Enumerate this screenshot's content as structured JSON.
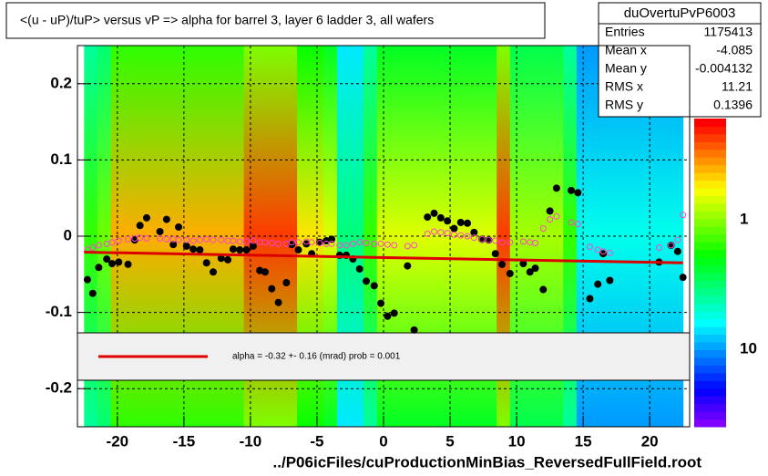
{
  "chart_data": {
    "type": "profile2d",
    "title": "<(u - uP)/tuP>  versus   vP => alpha for barrel 3, layer 6 ladder 3, all wafers",
    "x_label": "../P06icFiles/cuProductionMinBias_ReversedFullField.root",
    "xlim": [
      -23,
      23
    ],
    "ylim": [
      -0.25,
      0.25
    ],
    "xticks": [
      -20,
      -15,
      -10,
      -5,
      0,
      5,
      10,
      15,
      20
    ],
    "yticks": [
      -0.2,
      -0.1,
      0,
      0.1,
      0.2
    ],
    "grid": true,
    "stats": {
      "name": "duOvertuPvP6003",
      "rows": [
        [
          "Entries",
          "1175413"
        ],
        [
          "Mean x",
          "-4.085"
        ],
        [
          "Mean y",
          "-0.004132"
        ],
        [
          "RMS x",
          "11.21"
        ],
        [
          "RMS y",
          "0.1396"
        ]
      ]
    },
    "colorbar_labels": [
      "1",
      "10"
    ],
    "heatmap": {
      "bins": [
        -22.5,
        -21.5,
        -20.5,
        -19.5,
        -18.5,
        -17.5,
        -16.5,
        -15.5,
        -14.5,
        -13.5,
        -12.5,
        -11.5,
        -10.5,
        -9.5,
        -8.5,
        -7.5,
        -6.5,
        -5.5,
        -4.5,
        -3.5,
        -2.5,
        -1.5,
        -0.5,
        0.5,
        1.5,
        2.5,
        3.5,
        4.5,
        5.5,
        6.5,
        7.5,
        8.5,
        9.5,
        10.5,
        11.5,
        12.5,
        13.5,
        14.5,
        15.5,
        16.5,
        17.5,
        18.5,
        19.5,
        20.5,
        21.5,
        22.5
      ],
      "levels": [
        0.6,
        0.65,
        0.85,
        0.85,
        0.85,
        0.85,
        0.85,
        0.85,
        0.85,
        0.85,
        0.85,
        0.85,
        0.95,
        0.95,
        0.95,
        0.95,
        0.8,
        0.8,
        0.75,
        0.45,
        0.45,
        0.6,
        0.75,
        0.75,
        0.75,
        0.75,
        0.75,
        0.75,
        0.75,
        0.75,
        0.75,
        0.95,
        0.7,
        0.7,
        0.7,
        0.7,
        0.6,
        0.35,
        0.35,
        0.35,
        0.35,
        0.35,
        0.35,
        0.35,
        0.35
      ]
    },
    "x": [
      -22.25,
      -21.85,
      -21.4,
      -20.8,
      -20.4,
      -19.9,
      -19.2,
      -18.7,
      -18.3,
      -17.8,
      -16.8,
      -16.3,
      -15.8,
      -15.4,
      -14.8,
      -14.3,
      -13.8,
      -13.3,
      -12.8,
      -12.2,
      -11.7,
      -11.3,
      -10.8,
      -10.3,
      -9.8,
      -9.3,
      -8.9,
      -8.4,
      -7.9,
      -7.3,
      -6.9,
      -6.4,
      -5.8,
      -5.4,
      -4.8,
      -4.3,
      -3.9,
      -3.3,
      -2.8,
      -2.3,
      -1.8,
      -1.3,
      -0.7,
      -0.2,
      0.3,
      0.8,
      1.8,
      2.3,
      3.3,
      3.8,
      4.3,
      4.8,
      5.3,
      5.8,
      6.3,
      6.8,
      7.4,
      7.9,
      8.4,
      8.9,
      9.5,
      10.5,
      11.0,
      11.4,
      12.0,
      12.5,
      13.0,
      14.1,
      14.6,
      15.5,
      16.1,
      16.5,
      17.0,
      20.7,
      21.6,
      22.1,
      22.5
    ],
    "series": [
      {
        "marker": "filled",
        "color": "#000000",
        "values": [
          -0.057,
          -0.075,
          -0.041,
          -0.03,
          -0.036,
          -0.034,
          -0.037,
          -0.005,
          0.014,
          0.024,
          0.006,
          0.022,
          -0.011,
          0.012,
          -0.013,
          -0.017,
          -0.018,
          -0.035,
          -0.047,
          -0.029,
          -0.031,
          -0.017,
          -0.018,
          -0.018,
          -0.013,
          -0.045,
          -0.047,
          -0.069,
          -0.087,
          -0.061,
          -0.011,
          -0.018,
          -0.01,
          -0.023,
          -0.008,
          -0.006,
          -0.004,
          -0.025,
          -0.025,
          -0.03,
          -0.043,
          -0.059,
          -0.065,
          -0.088,
          -0.105,
          -0.101,
          -0.039,
          -0.123,
          0.025,
          0.03,
          0.024,
          0.02,
          0.01,
          0.018,
          0.017,
          0.005,
          -0.004,
          -0.005,
          -0.023,
          -0.037,
          -0.049,
          -0.036,
          -0.047,
          -0.042,
          -0.07,
          0.033,
          0.063,
          0.06,
          0.057,
          -0.082,
          -0.063,
          -0.023,
          -0.058,
          -0.034,
          -0.012,
          -0.02,
          -0.054
        ]
      },
      {
        "marker": "open",
        "color": "#ff44cc",
        "values": [
          -0.018,
          -0.015,
          -0.012,
          -0.01,
          -0.008,
          -0.006,
          -0.004,
          -0.003,
          -0.002,
          -0.003,
          -0.003,
          -0.004,
          -0.004,
          -0.005,
          -0.005,
          -0.006,
          -0.005,
          -0.004,
          -0.005,
          -0.005,
          -0.006,
          -0.006,
          -0.007,
          -0.007,
          -0.006,
          -0.008,
          -0.008,
          -0.009,
          -0.01,
          -0.01,
          -0.008,
          -0.008,
          -0.007,
          -0.008,
          -0.009,
          -0.01,
          -0.01,
          -0.012,
          -0.012,
          -0.01,
          -0.008,
          -0.009,
          -0.01,
          -0.01,
          -0.011,
          -0.012,
          -0.013,
          -0.012,
          0.003,
          0.006,
          0.005,
          0.004,
          0.002,
          0.001,
          0.0,
          -0.002,
          -0.004,
          -0.005,
          -0.006,
          -0.008,
          -0.008,
          -0.007,
          -0.008,
          -0.009,
          0.01,
          0.022,
          0.026,
          0.018,
          0.016,
          -0.014,
          -0.018,
          -0.02,
          -0.022,
          -0.015,
          -0.012,
          -0.005,
          0.028
        ]
      }
    ],
    "fit": {
      "x": [
        -22.5,
        22.5
      ],
      "y": [
        -0.021,
        -0.035
      ],
      "color": "#dd0000"
    },
    "legend_text": "alpha =   -0.32 +-  0.16 (mrad) prob = 0.001"
  }
}
